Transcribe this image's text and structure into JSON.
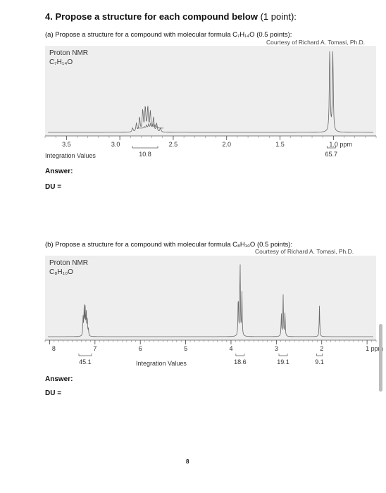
{
  "question": {
    "title": "4. Propose a structure for each compound below",
    "points": "(1 point):"
  },
  "part_a": {
    "prompt": "(a) Propose a structure for a compound with molecular formula C₇H₁₄O (0.5 points):",
    "credit": "Courtesy of Richard A. Tomasi, Ph.D.",
    "panel_title": "Proton NMR",
    "formula": "C₇H₁₄O",
    "integration_label": "Integration Values",
    "answer_label": "Answer:",
    "du_label": "DU ="
  },
  "part_b": {
    "prompt": "(b) Propose a structure for a compound with molecular formula C₈H₁₀O (0.5 points):",
    "credit": "Courtesy of Richard A. Tomasi, Ph.D.",
    "panel_title": "Proton NMR",
    "formula": "C₈H₁₀O",
    "integration_label": "Integration Values",
    "answer_label": "Answer:",
    "du_label": "DU ="
  },
  "page_number": "8",
  "chart_data": [
    {
      "type": "line",
      "title": "Proton NMR C₇H₁₄O",
      "xlabel": "ppm",
      "xlim": [
        3.7,
        0.6
      ],
      "x_ticks": [
        "3.5",
        "3.0",
        "2.5",
        "2.0",
        "1.5",
        "1.0 ppm"
      ],
      "peaks": [
        {
          "shift": 2.75,
          "kind": "multiplet",
          "integration": "10.8"
        },
        {
          "shift": 1.02,
          "kind": "doublet",
          "integration": "65.7"
        }
      ],
      "integrations": [
        "10.8",
        "65.7"
      ]
    },
    {
      "type": "line",
      "title": "Proton NMR C₈H₁₀O",
      "xlabel": "ppm",
      "xlim": [
        8.1,
        0.8
      ],
      "x_ticks": [
        "8",
        "7",
        "6",
        "5",
        "4",
        "3",
        "2",
        "1 ppm"
      ],
      "peaks": [
        {
          "shift": 7.2,
          "kind": "multiplet",
          "integration": "45.1"
        },
        {
          "shift": 3.8,
          "kind": "triplet",
          "integration": "18.6"
        },
        {
          "shift": 2.85,
          "kind": "triplet",
          "integration": "19.1"
        },
        {
          "shift": 2.05,
          "kind": "singlet",
          "integration": "9.1"
        }
      ],
      "integrations": [
        "45.1",
        "18.6",
        "19.1",
        "9.1"
      ]
    }
  ]
}
